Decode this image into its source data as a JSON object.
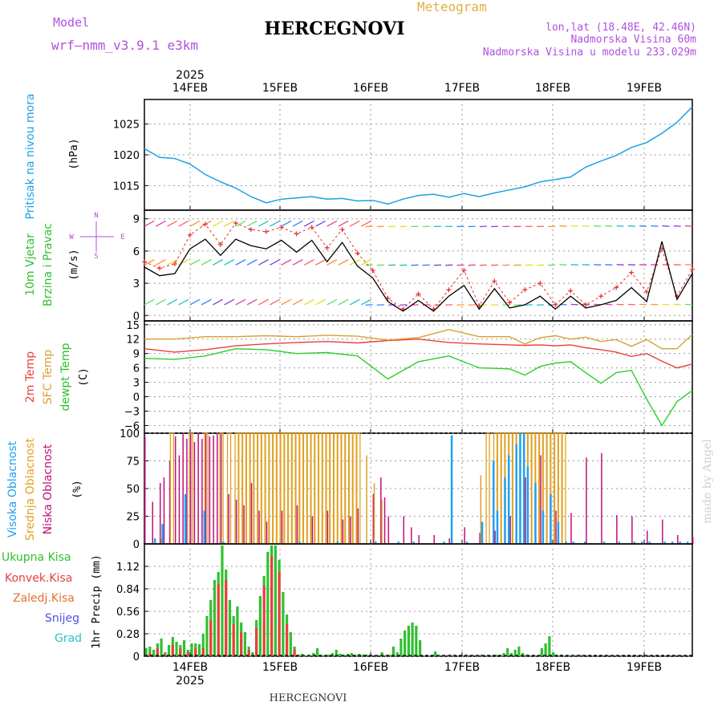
{
  "header": {
    "model_label": "Model",
    "model_name": "wrf—nmm_v3.9.1  e3km",
    "subtitle": "Meteogram",
    "title": "HERCEGNOVI",
    "coords": "lon,lat (18.48E, 42.46N)",
    "altitude": "Nadmorska Visina 60m",
    "model_altitude": "Nadmorska Visina u modelu 233.029m"
  },
  "footer": {
    "station": "HERCEGNOVI",
    "watermark": "made by Angel"
  },
  "time_axis": {
    "year": "2025",
    "days": [
      "14FEB",
      "15FEB",
      "16FEB",
      "17FEB",
      "18FEB",
      "19FEB"
    ]
  },
  "colors": {
    "pressure": "#1ea0e8",
    "wind_speed": "#000000",
    "gust": "#e83030",
    "temp_2m": "#e8403c",
    "temp_sfc": "#d8a030",
    "dewpoint": "#28d028",
    "cloud_high": "#20a0f0",
    "cloud_mid": "#e0a020",
    "cloud_low": "#c0107a",
    "precip_total": "#30c030",
    "precip_conv": "#e84040"
  },
  "chart_data": [
    {
      "type": "line",
      "title": "Pritisak na nivou mora",
      "ylabel": "(hPa)",
      "ylim": [
        1011,
        1029
      ],
      "yticks": [
        "1015",
        "1020",
        "1025"
      ],
      "x": [
        0,
        4,
        8,
        12,
        16,
        20,
        24,
        28,
        32,
        36,
        40,
        44,
        48,
        52,
        56,
        60,
        64,
        68,
        72,
        76,
        80,
        84,
        88,
        92,
        96,
        100,
        104,
        108,
        112,
        116,
        120,
        124,
        128,
        132,
        136,
        140,
        144
      ],
      "series": [
        {
          "name": "pressure",
          "values": [
            1021,
            1019.6,
            1019.4,
            1018.5,
            1016.8,
            1015.6,
            1014.6,
            1013.2,
            1012.2,
            1012.8,
            1013.0,
            1013.2,
            1012.8,
            1012.9,
            1012.5,
            1012.6,
            1012.0,
            1012.8,
            1013.4,
            1013.6,
            1013.1,
            1013.7,
            1013.2,
            1013.8,
            1014.3,
            1014.8,
            1015.6,
            1016.0,
            1016.4,
            1018.0,
            1019.0,
            1019.9,
            1021.2,
            1022.0,
            1023.5,
            1025.3,
            1027.8
          ]
        }
      ]
    },
    {
      "type": "line",
      "title": "10m Vjetar Brzina i Pravac",
      "ylabel": "(m/s)",
      "ylim": [
        -0.5,
        9.8
      ],
      "yticks": [
        "0",
        "3",
        "6",
        "9"
      ],
      "wind_rose": {
        "n": "N",
        "s": "S",
        "w": "W",
        "e": "E"
      },
      "x": [
        0,
        4,
        8,
        12,
        16,
        20,
        24,
        28,
        32,
        36,
        40,
        44,
        48,
        52,
        56,
        60,
        64,
        68,
        72,
        76,
        80,
        84,
        88,
        92,
        96,
        100,
        104,
        108,
        112,
        116,
        120,
        124,
        128,
        132,
        136,
        140,
        144
      ],
      "series": [
        {
          "name": "wind_speed",
          "values": [
            4.5,
            3.7,
            3.9,
            6.2,
            7.1,
            5.6,
            7.1,
            6.5,
            6.2,
            7.0,
            5.9,
            7.0,
            5.0,
            6.8,
            4.6,
            3.5,
            1.3,
            0.4,
            1.4,
            0.4,
            1.8,
            2.8,
            0.6,
            2.5,
            0.7,
            1.0,
            1.8,
            0.6,
            1.8,
            0.7,
            1.0,
            1.4,
            2.6,
            1.3,
            6.9,
            1.5,
            3.9
          ]
        },
        {
          "name": "gust",
          "values": [
            5.0,
            4.4,
            4.8,
            7.5,
            8.5,
            6.6,
            8.6,
            8.0,
            7.8,
            8.2,
            7.6,
            8.2,
            6.3,
            8.0,
            5.8,
            4.2,
            1.6,
            0.6,
            2.0,
            0.6,
            2.4,
            4.2,
            0.9,
            3.2,
            1.2,
            2.4,
            3.0,
            1.0,
            2.3,
            1.0,
            1.8,
            2.6,
            4.0,
            2.2,
            6.2,
            1.8,
            4.3
          ]
        }
      ]
    },
    {
      "type": "line",
      "title": "2m Temp / SFC Temp / dewpt Temp",
      "ylabel": "(C)",
      "ylim": [
        -7.6,
        15.8
      ],
      "yticks": [
        "−6",
        "−3",
        "0",
        "3",
        "6",
        "9",
        "12",
        "15"
      ],
      "x": [
        0,
        8,
        16,
        24,
        32,
        40,
        48,
        56,
        64,
        72,
        80,
        88,
        96,
        100,
        104,
        108,
        112,
        116,
        120,
        124,
        128,
        132,
        136,
        140,
        144
      ],
      "series": [
        {
          "name": "2m Temp",
          "values": [
            10.0,
            9.3,
            9.8,
            10.6,
            11.0,
            11.3,
            11.5,
            11.2,
            11.7,
            12.0,
            11.3,
            11.0,
            10.8,
            10.7,
            10.8,
            10.6,
            10.8,
            10.2,
            9.8,
            9.3,
            8.4,
            9.0,
            7.4,
            6.0,
            6.8
          ]
        },
        {
          "name": "SFC Temp",
          "values": [
            12.0,
            12.0,
            12.5,
            12.5,
            12.7,
            12.5,
            12.8,
            12.6,
            11.8,
            12.3,
            14.0,
            12.5,
            12.5,
            11.0,
            12.3,
            12.7,
            12.0,
            12.4,
            11.5,
            11.9,
            10.5,
            11.9,
            10.0,
            10.0,
            13.0
          ]
        },
        {
          "name": "dewpt Temp",
          "values": [
            8.0,
            7.8,
            8.5,
            10.0,
            9.8,
            9.0,
            9.2,
            8.5,
            3.7,
            7.3,
            8.5,
            6.0,
            5.8,
            4.5,
            6.3,
            7.0,
            7.3,
            5.0,
            2.8,
            5.0,
            5.5,
            -0.5,
            -6.0,
            -1.0,
            1.3
          ]
        }
      ]
    },
    {
      "type": "bar",
      "title": "Visoka / Srednja / Niska Oblacnost",
      "ylabel": "(%)",
      "ylim": [
        0,
        100
      ],
      "yticks": [
        "0",
        "25",
        "50",
        "75",
        "100"
      ],
      "series": [
        {
          "name": "Niska Oblacnost",
          "x": [
            0,
            2,
            4,
            5,
            6.5,
            8,
            9,
            10,
            11,
            12,
            13,
            14,
            15,
            16,
            17,
            18,
            19,
            20,
            22,
            24,
            26,
            28,
            30,
            32,
            36,
            40,
            44,
            48,
            52,
            54,
            56,
            60,
            62,
            63,
            64,
            68,
            70,
            72,
            76,
            80,
            84,
            88,
            92,
            96,
            100,
            104,
            108,
            112,
            116,
            120,
            124,
            128,
            132,
            136,
            140,
            144
          ],
          "values": [
            97,
            38,
            55,
            60,
            75,
            97,
            80,
            100,
            95,
            100,
            92,
            100,
            95,
            100,
            97,
            98,
            100,
            100,
            45,
            40,
            35,
            55,
            30,
            20,
            30,
            35,
            25,
            30,
            22,
            25,
            32,
            45,
            60,
            42,
            25,
            25,
            15,
            8,
            8,
            5,
            15,
            10,
            12,
            25,
            60,
            80,
            30,
            28,
            78,
            82,
            26,
            25,
            12,
            22,
            8,
            6
          ]
        },
        {
          "name": "Srednja Oblacnost",
          "x": [
            4,
            7,
            12,
            16,
            20,
            22,
            24,
            25,
            26,
            27,
            28,
            29,
            30,
            31,
            32,
            33,
            34,
            35,
            36,
            37,
            38,
            39,
            40,
            41,
            42,
            43,
            44,
            45,
            46,
            47,
            48,
            49,
            50,
            51,
            52,
            53,
            54,
            55,
            56,
            58,
            60,
            62,
            88,
            90,
            92,
            93,
            94,
            95,
            96,
            97,
            98,
            99,
            100,
            101,
            102,
            103,
            104,
            105,
            106,
            107,
            108,
            109,
            110
          ],
          "values": [
            5,
            100,
            100,
            100,
            100,
            100,
            100,
            100,
            100,
            100,
            100,
            100,
            100,
            100,
            100,
            100,
            100,
            100,
            100,
            100,
            100,
            100,
            100,
            100,
            100,
            100,
            100,
            100,
            100,
            100,
            100,
            100,
            100,
            100,
            100,
            100,
            100,
            100,
            100,
            80,
            55,
            40,
            62,
            100,
            100,
            100,
            100,
            100,
            100,
            100,
            100,
            100,
            100,
            100,
            100,
            100,
            100,
            100,
            100,
            100,
            100,
            100,
            100
          ]
        },
        {
          "name": "Visoka Oblacnost",
          "x": [
            2,
            4,
            10,
            15,
            20,
            40,
            50,
            60,
            66,
            70,
            78,
            80,
            84,
            88,
            91,
            92,
            94,
            95,
            97,
            98,
            99,
            100,
            102,
            104,
            106,
            108,
            110,
            112,
            115,
            120,
            124,
            128,
            130,
            132,
            136,
            138,
            140,
            142
          ],
          "values": [
            5,
            18,
            45,
            30,
            2,
            2,
            2,
            2,
            2,
            2,
            2,
            98,
            2,
            20,
            75,
            30,
            60,
            80,
            90,
            100,
            100,
            70,
            55,
            30,
            45,
            20,
            2,
            2,
            2,
            2,
            2,
            2,
            2,
            2,
            2,
            2,
            2,
            2
          ]
        }
      ]
    },
    {
      "type": "bar",
      "title": "1hr Precip",
      "ylabel": "1hr Precip (mm)",
      "ylim": [
        0,
        1.4
      ],
      "yticks": [
        "0",
        "0.28",
        "0.56",
        "0.84",
        "1.12"
      ],
      "legend": [
        "Ukupna Kisa",
        "Konvek.Kisa",
        "Zaledj.Kisa",
        "Snijeg",
        "Grad"
      ],
      "series": [
        {
          "name": "Ukupna Kisa",
          "x": [
            0,
            1,
            2,
            3,
            4,
            5,
            6,
            7,
            8,
            9,
            10,
            11,
            12,
            13,
            14,
            15,
            16,
            17,
            18,
            19,
            20,
            21,
            22,
            23,
            24,
            25,
            26,
            27,
            28,
            29,
            30,
            31,
            32,
            33,
            34,
            35,
            36,
            37,
            38,
            39,
            40,
            41,
            42,
            43,
            44,
            45,
            46,
            47,
            48,
            49,
            50,
            51,
            52,
            53,
            54,
            55,
            56,
            57,
            58,
            62,
            64,
            65,
            66,
            67,
            68,
            69,
            70,
            71,
            72,
            76,
            80,
            84,
            88,
            92,
            94,
            95,
            96,
            97,
            98,
            99,
            100,
            104,
            105,
            106,
            107,
            108,
            109,
            110,
            112,
            114
          ],
          "values": [
            0.1,
            0.12,
            0.08,
            0.16,
            0.22,
            0.05,
            0.14,
            0.24,
            0.18,
            0.14,
            0.2,
            0.08,
            0.16,
            0.16,
            0.15,
            0.28,
            0.5,
            0.7,
            0.95,
            1.05,
            1.38,
            1.08,
            0.7,
            0.5,
            0.62,
            0.42,
            0.3,
            0.12,
            0.05,
            0.45,
            0.75,
            1.0,
            1.3,
            1.38,
            1.38,
            1.2,
            0.8,
            0.52,
            0.3,
            0.12,
            0.02,
            0.03,
            0.01,
            0.01,
            0.04,
            0.1,
            0.02,
            0.01,
            0.02,
            0.04,
            0.08,
            0.03,
            0.02,
            0.03,
            0.04,
            0.02,
            0.03,
            0.02,
            0.02,
            0.05,
            0.02,
            0.12,
            0.05,
            0.22,
            0.32,
            0.38,
            0.42,
            0.38,
            0.2,
            0.06,
            0.02,
            0.02,
            0.02,
            0.02,
            0.04,
            0.1,
            0.04,
            0.08,
            0.12,
            0.04,
            0.02,
            0.1,
            0.16,
            0.25,
            0.05,
            0.02,
            0.02,
            0.01,
            0.01,
            0.02
          ]
        },
        {
          "name": "Konvek.Kisa",
          "x": [
            1,
            3,
            5,
            7,
            9,
            11,
            13,
            15,
            17,
            19,
            21,
            23,
            25,
            27,
            29,
            31,
            33,
            35,
            37,
            39
          ],
          "values": [
            0.04,
            0.1,
            0.03,
            0.14,
            0.1,
            0.05,
            0.1,
            0.1,
            0.45,
            0.9,
            0.95,
            0.4,
            0.3,
            0.08,
            0.35,
            0.88,
            1.25,
            1.05,
            0.4,
            0.08
          ]
        }
      ]
    }
  ]
}
